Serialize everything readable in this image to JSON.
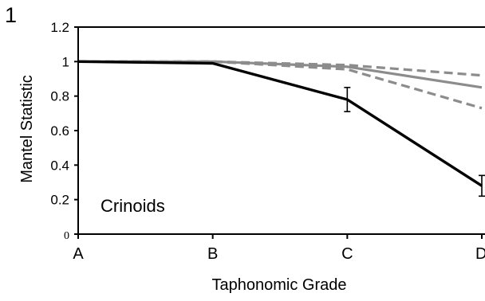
{
  "panel_label": "1",
  "chart_data": {
    "type": "line",
    "title": "",
    "xlabel": "Taphonomic Grade",
    "ylabel": "Mantel Statistic",
    "annotation": "Crinoids",
    "categories": [
      "A",
      "B",
      "C",
      "D"
    ],
    "ylim": [
      0,
      1.2
    ],
    "yticks": [
      0,
      0.2,
      0.4,
      0.6,
      0.8,
      1,
      1.2
    ],
    "ytick_labels": [
      "0",
      "0.2",
      "0.4",
      "0.6",
      "0.8",
      "1",
      "1.2"
    ],
    "grid": false,
    "legend": "none",
    "series": [
      {
        "values": [
          1.0,
          0.99,
          0.78,
          0.28
        ],
        "error": [
          0,
          0,
          0.07,
          0.06
        ],
        "color": "#000000",
        "style": "solid"
      },
      {
        "values": [
          1.0,
          1.0,
          0.97,
          0.85
        ],
        "color": "#8c8c8c",
        "style": "solid"
      },
      {
        "values": [
          1.0,
          1.0,
          0.98,
          0.92
        ],
        "color": "#8c8c8c",
        "style": "dashed"
      },
      {
        "values": [
          1.0,
          1.0,
          0.955,
          0.73
        ],
        "color": "#8c8c8c",
        "style": "dashed"
      }
    ]
  }
}
